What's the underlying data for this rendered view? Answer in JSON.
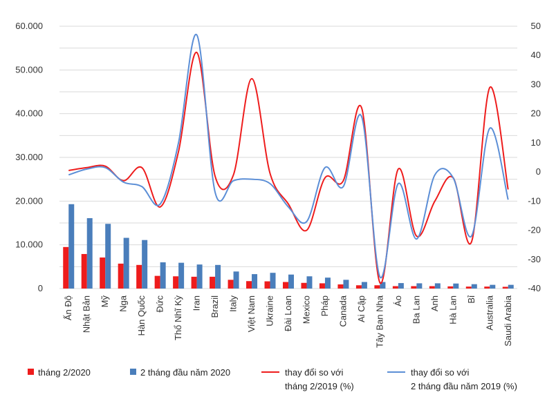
{
  "chart_data": {
    "type": "bar",
    "categories": [
      "Ấn Độ",
      "Nhật Bản",
      "Mỹ",
      "Nga",
      "Hàn Quốc",
      "Đức",
      "Thổ Nhĩ Kỳ",
      "Iran",
      "Brazil",
      "Italy",
      "Việt Nam",
      "Ukraine",
      "Đài Loan",
      "Mexico",
      "Pháp",
      "Canada",
      "Ai Cập",
      "Tây Ban Nha",
      "Áo",
      "Ba Lan",
      "Anh",
      "Hà Lan",
      "Bỉ",
      "Australia",
      "Saudi Arabia"
    ],
    "y_left": {
      "range": [
        0,
        60000
      ],
      "ticks": [
        "0",
        "5.000",
        "10.000",
        "15.000",
        "20.000",
        "25.000",
        "30.000",
        "35.000",
        "40.000",
        "45.000",
        "50.000",
        "55.000",
        "60.000"
      ],
      "tick_values": [
        0,
        5000,
        10000,
        15000,
        20000,
        25000,
        30000,
        35000,
        40000,
        45000,
        50000,
        55000,
        60000
      ],
      "label_every": 2
    },
    "y_right": {
      "range": [
        -40,
        50
      ],
      "ticks": [
        "-40",
        "-30",
        "-20",
        "-10",
        "0",
        "10",
        "20",
        "30",
        "40",
        "50"
      ],
      "tick_values": [
        -40,
        -30,
        -20,
        -10,
        0,
        10,
        20,
        30,
        40,
        50
      ]
    },
    "grid": true,
    "legend_position": "bottom",
    "series": [
      {
        "name": "tháng 2/2020",
        "kind": "bar",
        "axis": "left",
        "color": "#ee1c1c",
        "values": [
          9500,
          7900,
          7100,
          5700,
          5400,
          2900,
          2800,
          2700,
          2700,
          2000,
          1700,
          1650,
          1500,
          1300,
          1200,
          950,
          750,
          750,
          550,
          550,
          550,
          500,
          450,
          450,
          400
        ]
      },
      {
        "name": "2 tháng đầu năm 2020",
        "kind": "bar",
        "axis": "left",
        "color": "#4a7ebb",
        "values": [
          19300,
          16100,
          14800,
          11600,
          11100,
          6000,
          5900,
          5500,
          5400,
          3900,
          3300,
          3600,
          3200,
          2800,
          2500,
          2000,
          1500,
          1500,
          1250,
          1200,
          1200,
          1150,
          1000,
          850,
          850
        ]
      },
      {
        "name": "thay đổi so với\ntháng 2/2019 (%)",
        "kind": "line",
        "axis": "right",
        "color": "#ee1c1c",
        "values": [
          0.5,
          1.5,
          2,
          -3,
          1.5,
          -12,
          7,
          41,
          -1.5,
          -1,
          32,
          -0.5,
          -11,
          -20,
          -2,
          -3,
          22,
          -38,
          1,
          -22,
          -10,
          -2,
          -24,
          29,
          -6
        ]
      },
      {
        "name": "thay đổi so với\n2 tháng đầu năm 2019 (%)",
        "kind": "line",
        "axis": "right",
        "color": "#5b8ed6",
        "values": [
          -1,
          1,
          1.5,
          -3.5,
          -5,
          -11,
          10,
          47,
          -7,
          -3,
          -2.5,
          -4,
          -12,
          -17,
          1.5,
          -5,
          19,
          -36,
          -4,
          -23,
          -1,
          -2,
          -22,
          15,
          -9.5
        ]
      }
    ]
  },
  "colors": {
    "grid": "#d9d9d9",
    "axis_text": "#333333"
  }
}
